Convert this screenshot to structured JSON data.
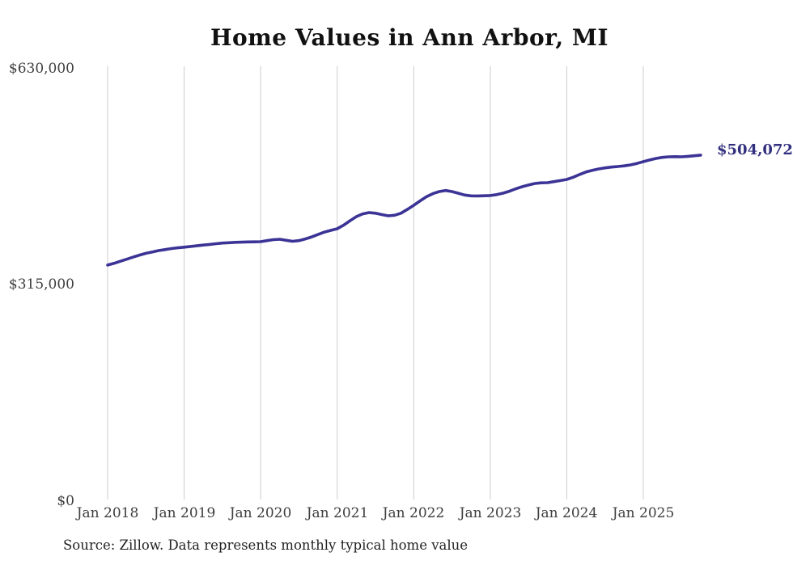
{
  "page": {
    "title": "Home Values in Ann Arbor, MI",
    "source_note": "Source: Zillow. Data represents monthly typical home value"
  },
  "chart_data": {
    "type": "line",
    "title": "Home Values in Ann Arbor, MI",
    "series_name": "Monthly typical home value (USD)",
    "x": [
      "2018-01",
      "2018-02",
      "2018-03",
      "2018-04",
      "2018-05",
      "2018-06",
      "2018-07",
      "2018-08",
      "2018-09",
      "2018-10",
      "2018-11",
      "2018-12",
      "2019-01",
      "2019-02",
      "2019-03",
      "2019-04",
      "2019-05",
      "2019-06",
      "2019-07",
      "2019-08",
      "2019-09",
      "2019-10",
      "2019-11",
      "2019-12",
      "2020-01",
      "2020-02",
      "2020-03",
      "2020-04",
      "2020-05",
      "2020-06",
      "2020-07",
      "2020-08",
      "2020-09",
      "2020-10",
      "2020-11",
      "2020-12",
      "2021-01",
      "2021-02",
      "2021-03",
      "2021-04",
      "2021-05",
      "2021-06",
      "2021-07",
      "2021-08",
      "2021-09",
      "2021-10",
      "2021-11",
      "2021-12",
      "2022-01",
      "2022-02",
      "2022-03",
      "2022-04",
      "2022-05",
      "2022-06",
      "2022-07",
      "2022-08",
      "2022-09",
      "2022-10",
      "2022-11",
      "2022-12",
      "2023-01",
      "2023-02",
      "2023-03",
      "2023-04",
      "2023-05",
      "2023-06",
      "2023-07",
      "2023-08",
      "2023-09",
      "2023-10",
      "2023-11",
      "2023-12",
      "2024-01",
      "2024-02",
      "2024-03",
      "2024-04",
      "2024-05",
      "2024-06",
      "2024-07",
      "2024-08",
      "2024-09",
      "2024-10",
      "2024-11",
      "2024-12",
      "2025-01",
      "2025-02",
      "2025-03",
      "2025-04",
      "2025-05",
      "2025-06",
      "2025-07",
      "2025-08",
      "2025-09",
      "2025-10"
    ],
    "values": [
      344000,
      346500,
      349500,
      352500,
      355500,
      358500,
      361000,
      363000,
      365000,
      366500,
      368000,
      369000,
      370000,
      371000,
      372000,
      373000,
      374000,
      375000,
      376000,
      376500,
      377000,
      377300,
      377600,
      377800,
      378000,
      379500,
      381000,
      381500,
      380000,
      378600,
      379500,
      382000,
      385000,
      388500,
      392000,
      394500,
      396800,
      402000,
      408500,
      414500,
      418500,
      420400,
      419500,
      417500,
      415700,
      416500,
      419500,
      425000,
      431000,
      437500,
      443500,
      448000,
      451000,
      452500,
      451000,
      448500,
      446000,
      444800,
      444700,
      444900,
      445200,
      446500,
      448700,
      451500,
      455000,
      458100,
      460500,
      462800,
      463700,
      464000,
      465500,
      467000,
      468700,
      471800,
      475800,
      479500,
      482000,
      484000,
      485500,
      486700,
      487500,
      488500,
      489900,
      492000,
      494600,
      497000,
      499300,
      500800,
      501700,
      501900,
      501700,
      502300,
      503200,
      504072
    ],
    "final_value": 504072,
    "end_label": "$504,072",
    "y_tick_labels": [
      "$0",
      "$315,000",
      "$630,000"
    ],
    "y_tick_values": [
      0,
      315000,
      630000
    ],
    "x_tick_labels": [
      "Jan 2018",
      "Jan 2019",
      "Jan 2020",
      "Jan 2021",
      "Jan 2022",
      "Jan 2023",
      "Jan 2024",
      "Jan 2025"
    ],
    "ylim": [
      0,
      630000
    ],
    "grid": "vertical-only",
    "legend": "none",
    "line_color": "#3b3395",
    "grid_color": "#cccccc",
    "source": "Source: Zillow. Data represents monthly typical home value"
  }
}
